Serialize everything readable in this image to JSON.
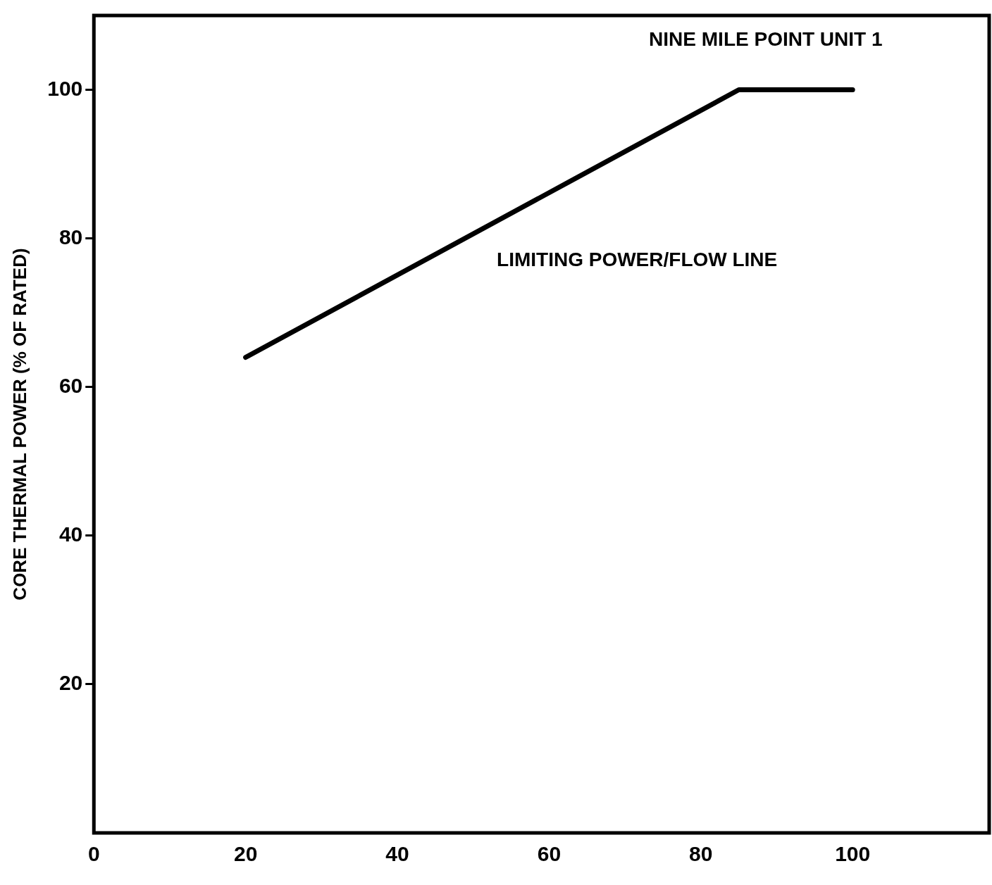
{
  "chart_data": {
    "type": "line",
    "ylabel": "CORE THERMAL POWER (% OF RATED)",
    "annotations": [
      "NINE MILE POINT UNIT 1",
      "LIMITING POWER/FLOW LINE"
    ],
    "x": [
      20,
      85,
      100
    ],
    "values": [
      64,
      100,
      100
    ],
    "color": "#000000",
    "xlim": [
      0,
      118
    ],
    "ylim": [
      0,
      110
    ],
    "xticks": [
      0,
      20,
      40,
      60,
      80,
      100
    ],
    "yticks": [
      20,
      40,
      60,
      80,
      100
    ],
    "grid": false,
    "legend": false,
    "marker": "none",
    "line_style": "solid"
  }
}
